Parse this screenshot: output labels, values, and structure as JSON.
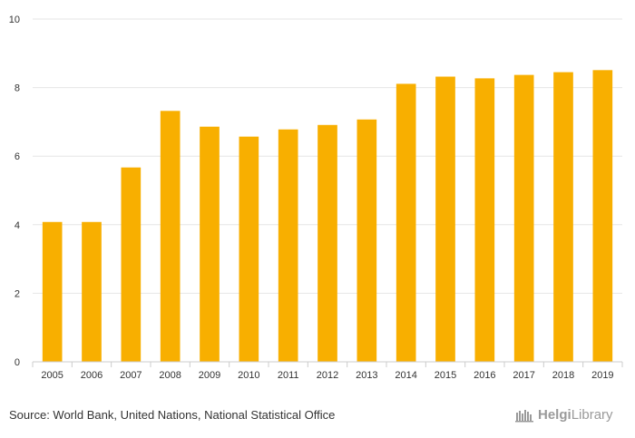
{
  "chart_data": {
    "type": "bar",
    "categories": [
      "2005",
      "2006",
      "2007",
      "2008",
      "2009",
      "2010",
      "2011",
      "2012",
      "2013",
      "2014",
      "2015",
      "2016",
      "2017",
      "2018",
      "2019"
    ],
    "values": [
      4.08,
      4.08,
      5.67,
      7.32,
      6.86,
      6.57,
      6.78,
      6.91,
      7.07,
      8.11,
      8.32,
      8.27,
      8.37,
      8.45,
      8.51
    ],
    "title": "",
    "xlabel": "",
    "ylabel": "",
    "ylim": [
      0,
      10
    ],
    "yticks": [
      "0",
      "2",
      "4",
      "6",
      "8",
      "10"
    ],
    "grid": true,
    "bar_color": "#F8AF00",
    "grid_color": "#e6e6e6",
    "axis_color": "#cccccc"
  },
  "footer": {
    "source": "Source: World Bank, United Nations, National Statistical Office",
    "logo_brand": "Helgi",
    "logo_suffix": "Library",
    "logo_icon": "helgi-library-logo-icon"
  }
}
